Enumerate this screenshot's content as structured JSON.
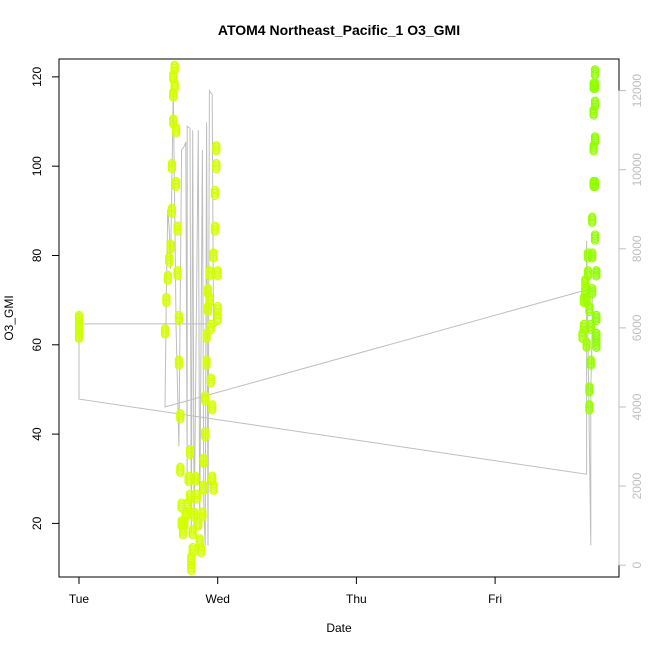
{
  "chart_data": {
    "type": "scatter",
    "title": "ATOM4 Northeast_Pacific_1 O3_GMI",
    "xlabel": "Date",
    "ylabel": "O3_GMI",
    "xlim": [
      0,
      3.78
    ],
    "ylim": [
      8,
      124
    ],
    "y2lim": [
      -300,
      12800
    ],
    "x_tick_labels": [
      "Tue",
      "Wed",
      "Thu",
      "Fri"
    ],
    "x_tick_values": [
      0,
      1,
      2,
      3
    ],
    "y_ticks": [
      20,
      40,
      60,
      80,
      100,
      120
    ],
    "y2_ticks": [
      0,
      2000,
      4000,
      6000,
      8000,
      10000,
      12000
    ],
    "series": [
      {
        "role": "O3_GMI",
        "axis": "left",
        "color_scale": [
          "#d4ff00",
          "#60ff00"
        ],
        "points": [
          [
            0.0,
            62
          ],
          [
            0.0,
            64
          ],
          [
            0.0,
            66
          ],
          [
            0.62,
            63
          ],
          [
            0.63,
            70
          ],
          [
            0.64,
            75
          ],
          [
            0.65,
            79
          ],
          [
            0.66,
            82
          ],
          [
            0.67,
            90
          ],
          [
            0.67,
            100
          ],
          [
            0.68,
            110
          ],
          [
            0.68,
            116
          ],
          [
            0.68,
            120
          ],
          [
            0.69,
            122
          ],
          [
            0.69,
            118
          ],
          [
            0.7,
            108
          ],
          [
            0.7,
            96
          ],
          [
            0.71,
            86
          ],
          [
            0.71,
            76
          ],
          [
            0.72,
            66
          ],
          [
            0.72,
            56
          ],
          [
            0.73,
            44
          ],
          [
            0.73,
            32
          ],
          [
            0.74,
            24
          ],
          [
            0.74,
            20
          ],
          [
            0.75,
            18
          ],
          [
            0.76,
            20
          ],
          [
            0.77,
            22
          ],
          [
            0.78,
            24
          ],
          [
            0.79,
            30
          ],
          [
            0.8,
            36
          ],
          [
            0.8,
            26
          ],
          [
            0.81,
            12
          ],
          [
            0.81,
            10
          ],
          [
            0.82,
            14
          ],
          [
            0.82,
            18
          ],
          [
            0.83,
            22
          ],
          [
            0.84,
            30
          ],
          [
            0.85,
            26
          ],
          [
            0.86,
            20
          ],
          [
            0.87,
            16
          ],
          [
            0.88,
            14
          ],
          [
            0.89,
            22
          ],
          [
            0.9,
            28
          ],
          [
            0.9,
            34
          ],
          [
            0.91,
            40
          ],
          [
            0.91,
            48
          ],
          [
            0.92,
            56
          ],
          [
            0.92,
            62
          ],
          [
            0.93,
            68
          ],
          [
            0.93,
            72
          ],
          [
            0.94,
            76
          ],
          [
            0.94,
            70
          ],
          [
            0.95,
            64
          ],
          [
            0.95,
            52
          ],
          [
            0.96,
            46
          ],
          [
            0.96,
            30
          ],
          [
            0.97,
            28
          ],
          [
            0.97,
            80
          ],
          [
            0.98,
            86
          ],
          [
            0.98,
            94
          ],
          [
            0.99,
            100
          ],
          [
            0.99,
            104
          ],
          [
            1.0,
            76
          ],
          [
            1.0,
            68
          ],
          [
            1.0,
            66
          ],
          [
            3.63,
            62
          ],
          [
            3.64,
            64
          ],
          [
            3.64,
            70
          ],
          [
            3.65,
            72
          ],
          [
            3.65,
            74
          ],
          [
            3.66,
            60
          ],
          [
            3.66,
            70
          ],
          [
            3.67,
            76
          ],
          [
            3.67,
            80
          ],
          [
            3.68,
            68
          ],
          [
            3.68,
            50
          ],
          [
            3.68,
            46
          ],
          [
            3.69,
            56
          ],
          [
            3.69,
            64
          ],
          [
            3.7,
            72
          ],
          [
            3.7,
            80
          ],
          [
            3.7,
            88
          ],
          [
            3.71,
            96
          ],
          [
            3.71,
            104
          ],
          [
            3.71,
            112
          ],
          [
            3.71,
            118
          ],
          [
            3.72,
            121
          ],
          [
            3.72,
            118
          ],
          [
            3.72,
            114
          ],
          [
            3.72,
            106
          ],
          [
            3.72,
            96
          ],
          [
            3.72,
            84
          ],
          [
            3.73,
            76
          ],
          [
            3.73,
            66
          ],
          [
            3.73,
            62
          ],
          [
            3.73,
            60
          ]
        ]
      },
      {
        "role": "secondary",
        "axis": "right",
        "color": "#bebebe",
        "path": [
          [
            0.0,
            6400
          ],
          [
            0.0,
            4200
          ],
          [
            3.66,
            2300
          ],
          [
            3.66,
            8200
          ],
          [
            3.69,
            500
          ],
          [
            3.69,
            4400
          ],
          [
            3.7,
            6000
          ],
          [
            3.7,
            7000
          ],
          [
            0.62,
            4000
          ],
          [
            0.63,
            7000
          ],
          [
            0.64,
            9000
          ],
          [
            0.65,
            8500
          ],
          [
            0.66,
            7500
          ],
          [
            0.68,
            12000
          ],
          [
            0.7,
            6000
          ],
          [
            0.72,
            3000
          ],
          [
            0.74,
            10500
          ],
          [
            0.76,
            10600
          ],
          [
            0.77,
            10700
          ],
          [
            0.78,
            2000
          ],
          [
            0.78,
            11100
          ],
          [
            0.8,
            11050
          ],
          [
            0.81,
            800
          ],
          [
            0.82,
            11000
          ],
          [
            0.83,
            800
          ],
          [
            0.86,
            11000
          ],
          [
            0.87,
            900
          ],
          [
            0.89,
            10500
          ],
          [
            0.9,
            1500
          ],
          [
            0.91,
            500
          ],
          [
            0.92,
            11200
          ],
          [
            0.93,
            500
          ],
          [
            0.94,
            12000
          ],
          [
            0.96,
            11900
          ],
          [
            0.97,
            6000
          ],
          [
            1.0,
            6100
          ],
          [
            0.03,
            6100
          ]
        ]
      }
    ]
  }
}
